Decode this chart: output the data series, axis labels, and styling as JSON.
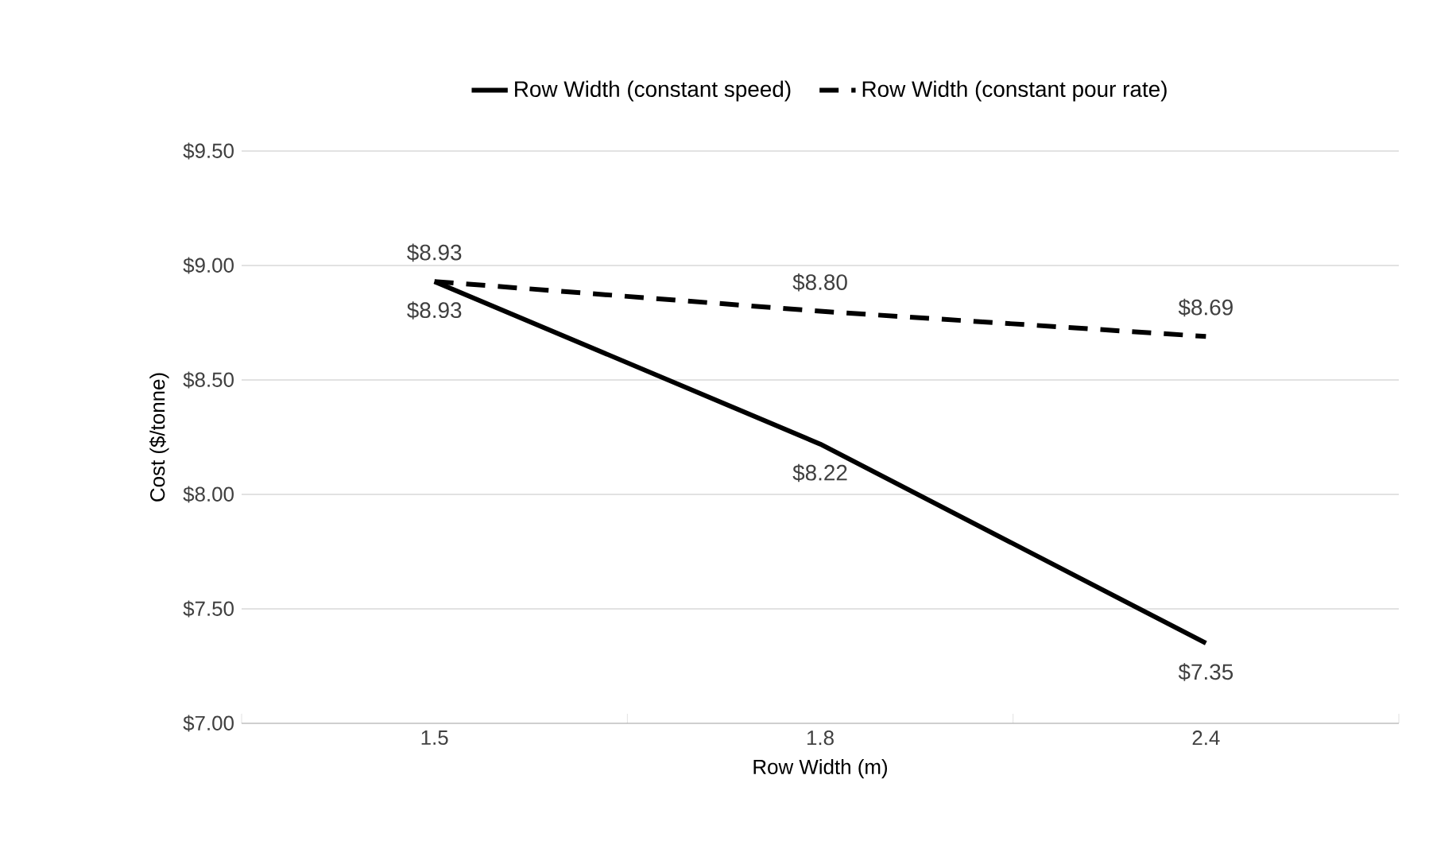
{
  "chart_data": {
    "type": "line",
    "xlabel": "Row Width (m)",
    "ylabel": "Cost ($/tonne)",
    "categories": [
      "1.5",
      "1.8",
      "2.4"
    ],
    "series": [
      {
        "name": "Row Width (constant speed)",
        "color": "#000000",
        "line_style": "solid",
        "values": [
          8.93,
          8.22,
          7.35
        ],
        "value_labels": [
          "$8.93",
          "$8.22",
          "$7.35"
        ]
      },
      {
        "name": "Row Width (constant pour rate)",
        "color": "#000000",
        "line_style": "dashed",
        "values": [
          8.93,
          8.8,
          8.69
        ],
        "value_labels": [
          "$8.93",
          "$8.80",
          "$8.69"
        ]
      }
    ],
    "ylim": [
      7.0,
      9.5
    ],
    "yticks": [
      {
        "value": 7.0,
        "label": "$7.00"
      },
      {
        "value": 7.5,
        "label": "$7.50"
      },
      {
        "value": 8.0,
        "label": "$8.00"
      },
      {
        "value": 8.5,
        "label": "$8.50"
      },
      {
        "value": 9.0,
        "label": "$9.00"
      },
      {
        "value": 9.5,
        "label": "$9.50"
      }
    ],
    "grid": "y",
    "legend": "top",
    "marker": "none"
  }
}
